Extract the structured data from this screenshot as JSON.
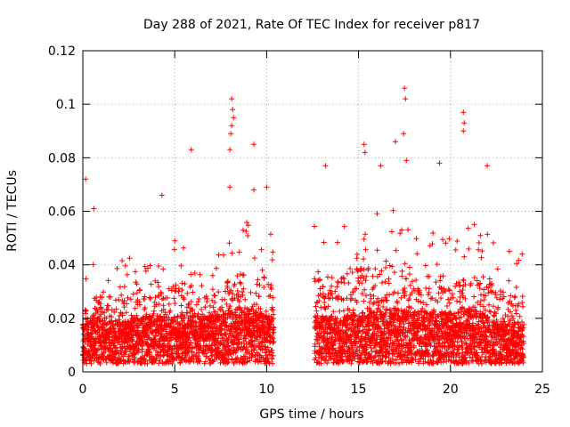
{
  "chart_data": {
    "type": "scatter",
    "title": "Day 288 of 2021, Rate Of TEC Index for receiver p817",
    "xlabel": "GPS time / hours",
    "ylabel": "ROTI / TECUs",
    "xlim": [
      0,
      25
    ],
    "ylim": [
      0,
      0.12
    ],
    "x_ticks": [
      0,
      5,
      10,
      15,
      20,
      25
    ],
    "x_tick_labels": [
      "0",
      "5",
      "10",
      "15",
      "20",
      "25"
    ],
    "y_ticks": [
      0,
      0.02,
      0.04,
      0.06,
      0.08,
      0.1,
      0.12
    ],
    "y_tick_labels": [
      "0",
      "0.02",
      "0.04",
      "0.06",
      "0.08",
      "0.1",
      "0.12"
    ],
    "grid": true,
    "marker": "plus",
    "color": "#ff0000",
    "data_gap_hours": [
      10.4,
      12.6
    ],
    "peak_points": [
      {
        "x": 0.15,
        "y": 0.072
      },
      {
        "x": 0.6,
        "y": 0.061
      },
      {
        "x": 4.3,
        "y": 0.066
      },
      {
        "x": 5.9,
        "y": 0.083
      },
      {
        "x": 8.1,
        "y": 0.102
      },
      {
        "x": 8.15,
        "y": 0.098
      },
      {
        "x": 8.2,
        "y": 0.095
      },
      {
        "x": 8.1,
        "y": 0.092
      },
      {
        "x": 8.05,
        "y": 0.089
      },
      {
        "x": 9.3,
        "y": 0.085
      },
      {
        "x": 8.0,
        "y": 0.083
      },
      {
        "x": 8.0,
        "y": 0.069
      },
      {
        "x": 9.3,
        "y": 0.068
      },
      {
        "x": 10.0,
        "y": 0.069
      },
      {
        "x": 13.2,
        "y": 0.077
      },
      {
        "x": 15.3,
        "y": 0.085
      },
      {
        "x": 15.35,
        "y": 0.082
      },
      {
        "x": 16.2,
        "y": 0.077
      },
      {
        "x": 17.0,
        "y": 0.086
      },
      {
        "x": 17.5,
        "y": 0.106
      },
      {
        "x": 17.55,
        "y": 0.102
      },
      {
        "x": 17.45,
        "y": 0.089
      },
      {
        "x": 17.6,
        "y": 0.079
      },
      {
        "x": 19.4,
        "y": 0.078
      },
      {
        "x": 20.7,
        "y": 0.097
      },
      {
        "x": 20.75,
        "y": 0.093
      },
      {
        "x": 20.7,
        "y": 0.09
      },
      {
        "x": 22.0,
        "y": 0.077
      },
      {
        "x": 23.2,
        "y": 0.045
      },
      {
        "x": 23.9,
        "y": 0.044
      }
    ],
    "bulk_series": [
      {
        "x": 0.0,
        "y_median": 0.01,
        "y_max": 0.04
      },
      {
        "x": 1.0,
        "y_median": 0.012,
        "y_max": 0.045
      },
      {
        "x": 2.0,
        "y_median": 0.01,
        "y_max": 0.042
      },
      {
        "x": 3.0,
        "y_median": 0.012,
        "y_max": 0.046
      },
      {
        "x": 4.0,
        "y_median": 0.012,
        "y_max": 0.045
      },
      {
        "x": 5.0,
        "y_median": 0.012,
        "y_max": 0.05
      },
      {
        "x": 6.0,
        "y_median": 0.012,
        "y_max": 0.05
      },
      {
        "x": 7.0,
        "y_median": 0.012,
        "y_max": 0.04
      },
      {
        "x": 8.0,
        "y_median": 0.014,
        "y_max": 0.055
      },
      {
        "x": 9.0,
        "y_median": 0.014,
        "y_max": 0.058
      },
      {
        "x": 10.0,
        "y_median": 0.012,
        "y_max": 0.055
      },
      {
        "x": 13.0,
        "y_median": 0.012,
        "y_max": 0.055
      },
      {
        "x": 14.0,
        "y_median": 0.012,
        "y_max": 0.055
      },
      {
        "x": 15.0,
        "y_median": 0.013,
        "y_max": 0.06
      },
      {
        "x": 16.0,
        "y_median": 0.013,
        "y_max": 0.06
      },
      {
        "x": 17.0,
        "y_median": 0.014,
        "y_max": 0.062
      },
      {
        "x": 18.0,
        "y_median": 0.013,
        "y_max": 0.055
      },
      {
        "x": 19.0,
        "y_median": 0.013,
        "y_max": 0.058
      },
      {
        "x": 20.0,
        "y_median": 0.013,
        "y_max": 0.052
      },
      {
        "x": 21.0,
        "y_median": 0.014,
        "y_max": 0.058
      },
      {
        "x": 22.0,
        "y_median": 0.012,
        "y_max": 0.055
      },
      {
        "x": 23.0,
        "y_median": 0.01,
        "y_max": 0.045
      },
      {
        "x": 24.0,
        "y_median": 0.01,
        "y_max": 0.043
      }
    ]
  }
}
